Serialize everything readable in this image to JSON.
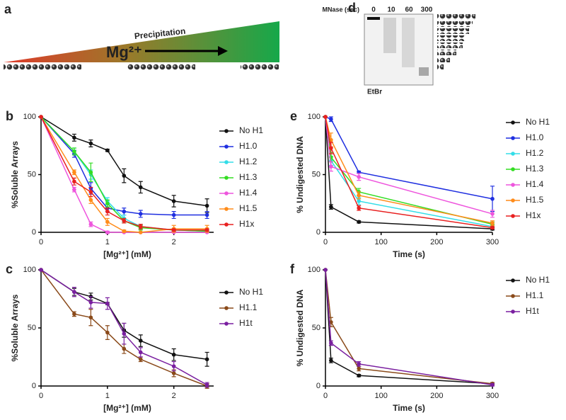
{
  "panel_a": {
    "label": "a",
    "arrow_text": "Precipitation",
    "ion": "Mg²⁺"
  },
  "panel_d": {
    "label": "d",
    "title": "MNase (sec)",
    "lanes": [
      "0",
      "10",
      "60",
      "300"
    ],
    "stain": "EtBr"
  },
  "chart_data": [
    {
      "type": "line",
      "panel": "b",
      "ylabel": "%Soluble Arrays",
      "xlabel": "[Mg²⁺] (mM)",
      "x": [
        0,
        0.5,
        0.75,
        1,
        1.25,
        1.5,
        2,
        2.5
      ],
      "xlim": [
        0,
        2.6
      ],
      "xticks": [
        0,
        1,
        2
      ],
      "ylim": [
        0,
        100
      ],
      "yticks": [
        0,
        50,
        100
      ],
      "series": [
        {
          "name": "No H1",
          "color": "#111111",
          "values": [
            100,
            82,
            77,
            71,
            49,
            39,
            27,
            23
          ],
          "errors": [
            0,
            3,
            3,
            1,
            6,
            5,
            5,
            6
          ]
        },
        {
          "name": "H1.0",
          "color": "#1f2fe0",
          "values": [
            100,
            68,
            38,
            21,
            18,
            16,
            15,
            15
          ],
          "errors": [
            0,
            3,
            5,
            3,
            3,
            3,
            3,
            3
          ]
        },
        {
          "name": "H1.2",
          "color": "#33dde8",
          "values": [
            100,
            70,
            50,
            27,
            12,
            5,
            2,
            1
          ],
          "errors": [
            0,
            3,
            4,
            3,
            3,
            2,
            1,
            1
          ]
        },
        {
          "name": "H1.3",
          "color": "#33dd22",
          "values": [
            100,
            70,
            52,
            25,
            10,
            4,
            2,
            1
          ],
          "errors": [
            0,
            3,
            8,
            3,
            2,
            2,
            1,
            1
          ]
        },
        {
          "name": "H1.4",
          "color": "#ee55dd",
          "values": [
            100,
            37,
            7,
            0,
            0,
            0,
            0,
            0
          ],
          "errors": [
            0,
            2,
            2,
            1,
            0,
            0,
            0,
            0
          ]
        },
        {
          "name": "H1.5",
          "color": "#ff8c1a",
          "values": [
            100,
            52,
            28,
            9,
            1,
            0,
            3,
            3
          ],
          "errors": [
            0,
            2,
            3,
            3,
            1,
            0,
            3,
            3
          ]
        },
        {
          "name": "H1x",
          "color": "#e82020",
          "values": [
            100,
            44,
            35,
            18,
            10,
            5,
            2,
            2
          ],
          "errors": [
            0,
            3,
            4,
            3,
            2,
            2,
            1,
            1
          ]
        }
      ]
    },
    {
      "type": "line",
      "panel": "c",
      "ylabel": "%Soluble Arrays",
      "xlabel": "[Mg²⁺] (mM)",
      "x": [
        0,
        0.5,
        0.75,
        1,
        1.25,
        1.5,
        2,
        2.5
      ],
      "xlim": [
        0,
        2.6
      ],
      "xticks": [
        0,
        1,
        2
      ],
      "ylim": [
        0,
        100
      ],
      "yticks": [
        0,
        50,
        100
      ],
      "series": [
        {
          "name": "No H1",
          "color": "#111111",
          "values": [
            100,
            81,
            77,
            71,
            48,
            39,
            27,
            23
          ],
          "errors": [
            0,
            3,
            3,
            1,
            6,
            5,
            5,
            6
          ]
        },
        {
          "name": "H1.1",
          "color": "#8a4a1a",
          "values": [
            100,
            62,
            59,
            46,
            32,
            23,
            11,
            0
          ],
          "errors": [
            0,
            2,
            7,
            6,
            4,
            2,
            3,
            2
          ]
        },
        {
          "name": "H1t",
          "color": "#7a1fa0",
          "values": [
            100,
            81,
            72,
            71,
            45,
            29,
            17,
            1
          ],
          "errors": [
            0,
            4,
            5,
            5,
            9,
            4,
            4,
            2
          ]
        }
      ]
    },
    {
      "type": "line",
      "panel": "e",
      "ylabel": "% Undigested DNA",
      "xlabel": "Time (s)",
      "x": [
        0,
        10,
        60,
        300
      ],
      "xlim": [
        0,
        300
      ],
      "xticks": [
        0,
        100,
        200,
        300
      ],
      "ylim": [
        0,
        100
      ],
      "yticks": [
        0,
        50,
        100
      ],
      "series": [
        {
          "name": "No H1",
          "color": "#111111",
          "values": [
            100,
            22,
            9,
            3
          ],
          "errors": [
            0,
            2,
            1,
            1
          ]
        },
        {
          "name": "H1.0",
          "color": "#1f2fe0",
          "values": [
            100,
            98,
            52,
            29
          ],
          "errors": [
            0,
            2,
            1,
            11
          ]
        },
        {
          "name": "H1.2",
          "color": "#33dde8",
          "values": [
            100,
            62,
            27,
            5
          ],
          "errors": [
            0,
            4,
            3,
            2
          ]
        },
        {
          "name": "H1.3",
          "color": "#33dd22",
          "values": [
            100,
            65,
            35,
            7
          ],
          "errors": [
            0,
            4,
            3,
            2
          ]
        },
        {
          "name": "H1.4",
          "color": "#ee55dd",
          "values": [
            100,
            57,
            48,
            16
          ],
          "errors": [
            0,
            4,
            3,
            3
          ]
        },
        {
          "name": "H1.5",
          "color": "#ff8c1a",
          "values": [
            100,
            80,
            32,
            8
          ],
          "errors": [
            0,
            6,
            3,
            2
          ]
        },
        {
          "name": "H1x",
          "color": "#e82020",
          "values": [
            100,
            73,
            21,
            4
          ],
          "errors": [
            0,
            5,
            2,
            1
          ]
        }
      ]
    },
    {
      "type": "line",
      "panel": "f",
      "ylabel": "% Undigested DNA",
      "xlabel": "Time (s)",
      "x": [
        0,
        10,
        60,
        300
      ],
      "xlim": [
        0,
        300
      ],
      "xticks": [
        0,
        100,
        200,
        300
      ],
      "ylim": [
        0,
        100
      ],
      "yticks": [
        0,
        50,
        100
      ],
      "series": [
        {
          "name": "No H1",
          "color": "#111111",
          "values": [
            100,
            22,
            9,
            2
          ],
          "errors": [
            0,
            2,
            1,
            1
          ]
        },
        {
          "name": "H1.1",
          "color": "#8a4a1a",
          "values": [
            100,
            55,
            15,
            2
          ],
          "errors": [
            0,
            4,
            2,
            1
          ]
        },
        {
          "name": "H1t",
          "color": "#7a1fa0",
          "values": [
            100,
            37,
            19,
            1
          ],
          "errors": [
            0,
            2,
            2,
            1
          ]
        }
      ]
    }
  ]
}
